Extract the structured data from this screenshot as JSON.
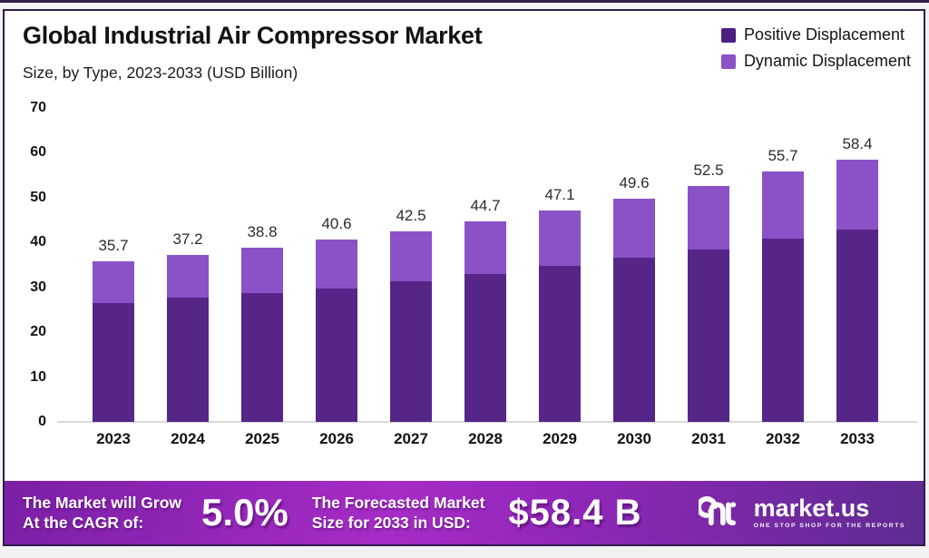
{
  "header": {
    "title": "Global Industrial Air Compressor Market",
    "subtitle": "Size, by Type, 2023-2033 (USD Billion)"
  },
  "legend": [
    {
      "label": "Positive Displacement",
      "color": "#4b1e82"
    },
    {
      "label": "Dynamic Displacement",
      "color": "#8b52c8"
    }
  ],
  "chart_data": {
    "type": "bar",
    "stacked": true,
    "title": "Global Industrial Air Compressor Market Size, by Type, 2023-2033 (USD Billion)",
    "categories": [
      "2023",
      "2024",
      "2025",
      "2026",
      "2027",
      "2028",
      "2029",
      "2030",
      "2031",
      "2032",
      "2033"
    ],
    "series": [
      {
        "name": "Positive Displacement",
        "color": "#552588",
        "values": [
          26.4,
          27.6,
          28.6,
          29.8,
          31.3,
          33.0,
          34.7,
          36.5,
          38.4,
          40.9,
          42.8
        ]
      },
      {
        "name": "Dynamic Displacement",
        "color": "#8b52c8",
        "values": [
          9.3,
          9.6,
          10.2,
          10.8,
          11.2,
          11.7,
          12.4,
          13.1,
          14.1,
          14.8,
          15.6
        ]
      }
    ],
    "totals": [
      35.7,
      37.2,
      38.8,
      40.6,
      42.5,
      44.7,
      47.1,
      49.6,
      52.5,
      55.7,
      58.4
    ],
    "total_labels": [
      "35.7",
      "37.2",
      "38.8",
      "40.6",
      "42.5",
      "44.7",
      "47.1",
      "49.6",
      "52.5",
      "55.7",
      "58.4"
    ],
    "xlabel": "",
    "ylabel": "",
    "ylim": [
      0,
      70
    ],
    "yticks": [
      0,
      10,
      20,
      30,
      40,
      50,
      60,
      70
    ],
    "grid": false,
    "legend_position": "top-right"
  },
  "footer": {
    "cagr_label_line1": "The Market will Grow",
    "cagr_label_line2": "At the CAGR of:",
    "cagr_value": "5.0%",
    "forecast_label_line1": "The Forecasted Market",
    "forecast_label_line2": "Size for 2033 in USD:",
    "forecast_value": "$58.4 B",
    "brand": {
      "name": "market.us",
      "tagline": "ONE STOP SHOP FOR THE REPORTS"
    },
    "gradient": [
      "#7b1fa6",
      "#a62cc6",
      "#9227bb",
      "#5e2b90"
    ]
  }
}
